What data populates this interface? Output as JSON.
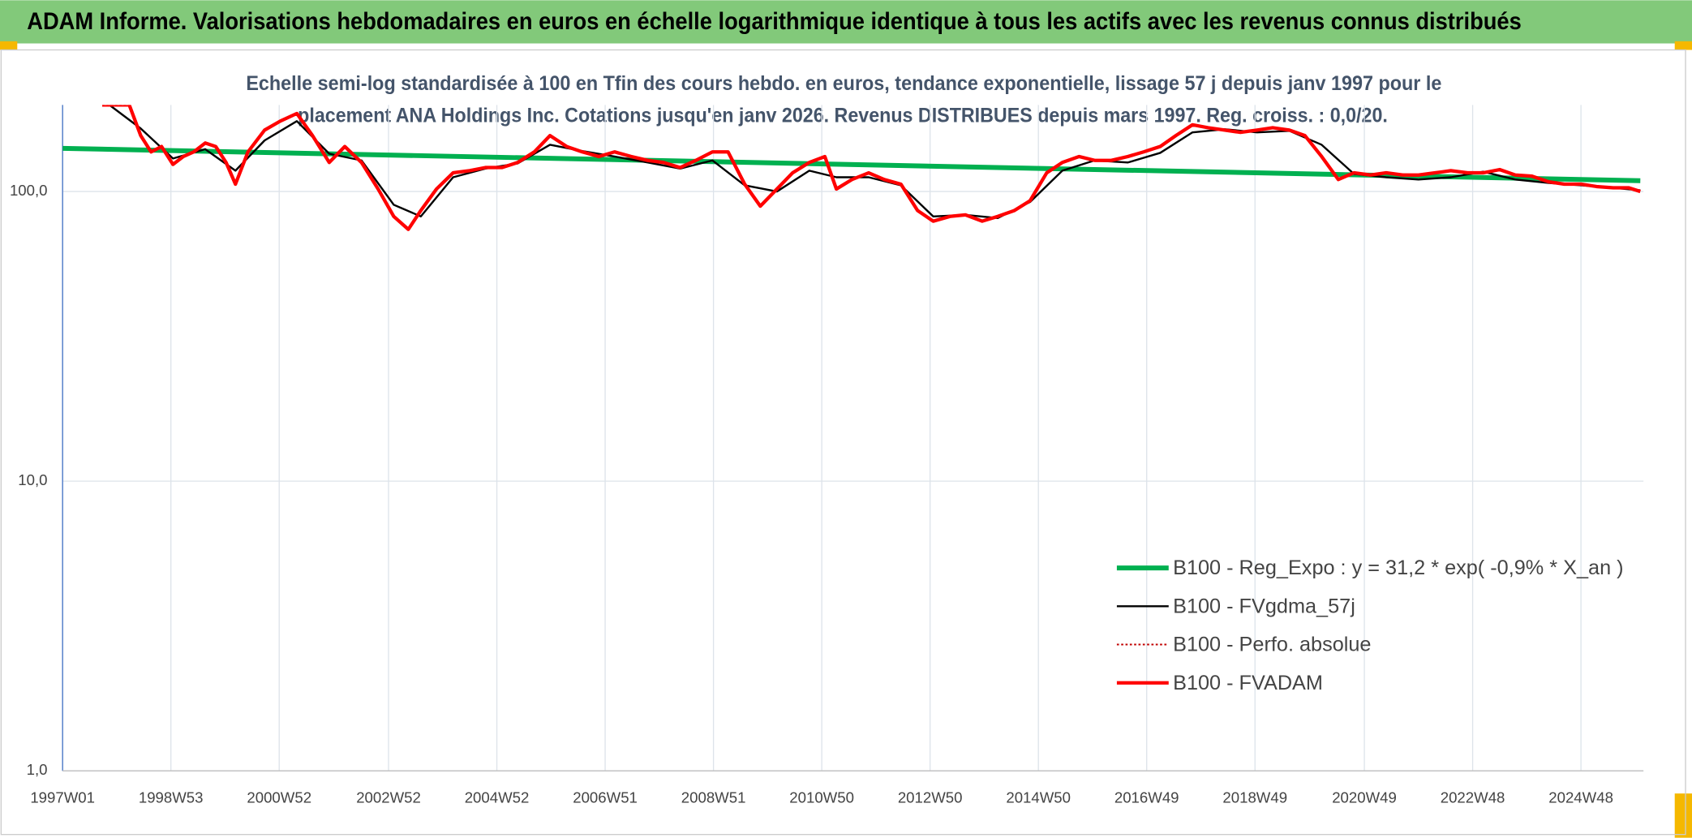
{
  "chart_data": {
    "type": "line",
    "title": "ADAM Informe. Valorisations hebdomadaires en euros en échelle logarithmique identique à tous les actifs avec les revenus connus distribués",
    "subtitle": [
      "Echelle semi-log standardisée à 100 en Tfin des cours hebdo. en euros, tendance exponentielle, lissage 57 j depuis janv 1997 pour le",
      "placement ANA Holdings Inc. Cotations jusqu'en janv 2026. Revenus DISTRIBUES depuis mars 1997. Reg. croiss. : 0,0/20."
    ],
    "log_scale": true,
    "grid": true,
    "legend": "bottom-right",
    "xlim": [
      0,
      1518
    ],
    "xticks": [
      {
        "value": 0,
        "label": "1997W01"
      },
      {
        "value": 104,
        "label": "1998W53"
      },
      {
        "value": 208,
        "label": "2000W52"
      },
      {
        "value": 313,
        "label": "2002W52"
      },
      {
        "value": 417,
        "label": "2004W52"
      },
      {
        "value": 521,
        "label": "2006W51"
      },
      {
        "value": 625,
        "label": "2008W51"
      },
      {
        "value": 729,
        "label": "2010W50"
      },
      {
        "value": 833,
        "label": "2012W50"
      },
      {
        "value": 937,
        "label": "2014W50"
      },
      {
        "value": 1041,
        "label": "2016W49"
      },
      {
        "value": 1145,
        "label": "2018W49"
      },
      {
        "value": 1250,
        "label": "2020W49"
      },
      {
        "value": 1354,
        "label": "2022W48"
      },
      {
        "value": 1458,
        "label": "2024W48"
      }
    ],
    "ylim": [
      1,
      199
    ],
    "yticks": [
      {
        "value": 1,
        "label": "1,0"
      },
      {
        "value": 10,
        "label": "10,0"
      },
      {
        "value": 100,
        "label": "100,0"
      }
    ],
    "x": [
      38,
      54,
      64,
      75,
      85,
      95,
      106,
      116,
      126,
      137,
      147,
      157,
      166,
      178,
      194,
      209,
      225,
      240,
      256,
      271,
      287,
      303,
      318,
      332,
      344,
      359,
      375,
      391,
      406,
      422,
      437,
      453,
      468,
      484,
      499,
      515,
      530,
      546,
      562,
      577,
      593,
      608,
      624,
      639,
      655,
      670,
      686,
      701,
      717,
      732,
      743,
      758,
      774,
      789,
      805,
      821,
      836,
      852,
      867,
      883,
      898,
      914,
      929,
      945,
      960,
      976,
      991,
      1007,
      1023,
      1038,
      1054,
      1069,
      1085,
      1100,
      1116,
      1131,
      1147,
      1162,
      1178,
      1193,
      1209,
      1225,
      1240,
      1256,
      1271,
      1287,
      1302,
      1318,
      1333,
      1349,
      1364,
      1380,
      1395,
      1411,
      1427,
      1442,
      1458,
      1473,
      1489,
      1504,
      1515
    ],
    "series": [
      {
        "name": "B100 - Reg_Expo : y = 31,2 * exp( -0,9% *  X_an )",
        "color": "#00b050",
        "style": "solid",
        "x": [
          0,
          1515
        ],
        "values": [
          141,
          109
        ]
      },
      {
        "name": "B100 - FVgdma_57j",
        "color": "#000000",
        "style": "solid",
        "x": [
          45,
          75,
          106,
          137,
          166,
          194,
          225,
          256,
          287,
          318,
          344,
          375,
          406,
          437,
          468,
          499,
          530,
          562,
          593,
          624,
          655,
          686,
          717,
          743,
          774,
          805,
          836,
          867,
          898,
          929,
          960,
          991,
          1023,
          1054,
          1085,
          1116,
          1147,
          1178,
          1209,
          1240,
          1271,
          1302,
          1333,
          1364,
          1395,
          1427,
          1458,
          1489,
          1515
        ],
        "values": [
          199,
          165,
          130,
          140,
          118,
          150,
          175,
          135,
          128,
          90,
          82,
          112,
          120,
          125,
          145,
          138,
          132,
          126,
          120,
          128,
          105,
          100,
          118,
          112,
          112,
          105,
          82,
          83,
          81,
          92,
          118,
          128,
          126,
          136,
          160,
          164,
          160,
          162,
          145,
          115,
          112,
          110,
          112,
          117,
          110,
          107,
          105,
          103,
          101
        ]
      },
      {
        "name": "B100 - Perfo. absolue",
        "color": "#c00000",
        "style": "dotted",
        "values": [
          199,
          199,
          199,
          156,
          137,
          143,
          124,
          132,
          137,
          147,
          143,
          126,
          106,
          137,
          163,
          175,
          186,
          156,
          126,
          143,
          126,
          102,
          82,
          74,
          86,
          102,
          116,
          118,
          121,
          121,
          126,
          137,
          156,
          143,
          137,
          132,
          137,
          132,
          128,
          126,
          121,
          128,
          137,
          137,
          106,
          89,
          102,
          116,
          126,
          132,
          102,
          110,
          116,
          110,
          106,
          86,
          79,
          82,
          83,
          79,
          82,
          86,
          93,
          116,
          126,
          132,
          128,
          128,
          132,
          137,
          143,
          156,
          170,
          166,
          163,
          160,
          163,
          166,
          163,
          156,
          132,
          110,
          116,
          114,
          116,
          114,
          114,
          116,
          118,
          116,
          116,
          119,
          114,
          113,
          108,
          106,
          106,
          104,
          103,
          103,
          100
        ]
      },
      {
        "name": "B100 - FVADAM",
        "color": "#ff0000",
        "style": "solid",
        "values": [
          199,
          199,
          199,
          156,
          137,
          143,
          124,
          132,
          137,
          147,
          143,
          126,
          106,
          137,
          163,
          175,
          186,
          156,
          126,
          143,
          126,
          102,
          82,
          74,
          86,
          102,
          116,
          118,
          121,
          121,
          126,
          137,
          156,
          143,
          137,
          132,
          137,
          132,
          128,
          126,
          121,
          128,
          137,
          137,
          106,
          89,
          102,
          116,
          126,
          132,
          102,
          110,
          116,
          110,
          106,
          86,
          79,
          82,
          83,
          79,
          82,
          86,
          93,
          116,
          126,
          132,
          128,
          128,
          132,
          137,
          143,
          156,
          170,
          166,
          163,
          160,
          163,
          166,
          163,
          156,
          132,
          110,
          116,
          114,
          116,
          114,
          114,
          116,
          118,
          116,
          116,
          119,
          114,
          113,
          108,
          106,
          106,
          104,
          103,
          103,
          100
        ]
      }
    ]
  }
}
